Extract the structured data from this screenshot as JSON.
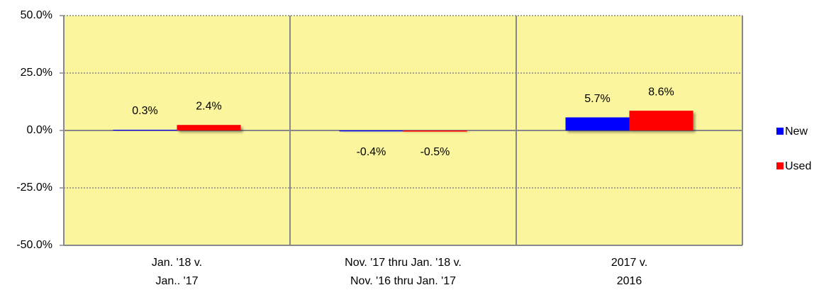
{
  "chart_data": {
    "type": "bar",
    "categories": [
      [
        "Jan. '18 v.",
        "Jan.. '17"
      ],
      [
        "Nov. '17 thru Jan. '18 v.",
        "Nov. '16 thru Jan. '17"
      ],
      [
        "2017 v.",
        "2016"
      ]
    ],
    "series": [
      {
        "name": "New",
        "color": "#0000ff",
        "values": [
          0.3,
          -0.4,
          5.7
        ],
        "value_labels": [
          "0.3%",
          "-0.4%",
          "5.7%"
        ]
      },
      {
        "name": "Used",
        "color": "#ff0000",
        "values": [
          2.4,
          -0.5,
          8.6
        ],
        "value_labels": [
          "2.4%",
          "-0.5%",
          "8.6%"
        ]
      }
    ],
    "ylim": [
      -50,
      50
    ],
    "yticks": [
      {
        "value": -50,
        "label": "-50.0%"
      },
      {
        "value": -25,
        "label": "-25.0%"
      },
      {
        "value": 0,
        "label": "0.0%"
      },
      {
        "value": 25,
        "label": "25.0%"
      },
      {
        "value": 50,
        "label": "50.0%"
      }
    ],
    "grid": true,
    "legend": "right",
    "plot_background": "#fbf59d"
  }
}
